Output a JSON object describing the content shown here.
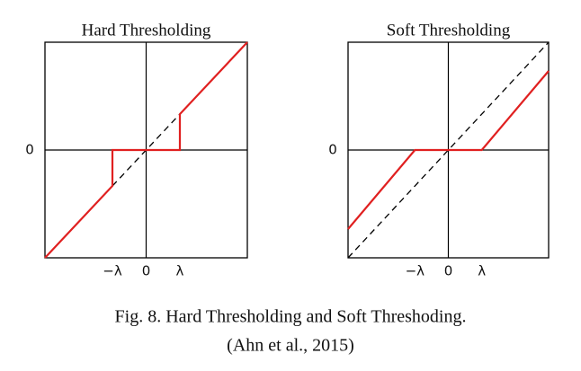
{
  "chart_data": [
    {
      "type": "line",
      "title": "Hard Thresholding",
      "xlim": [
        -3,
        3
      ],
      "ylim": [
        -3,
        3
      ],
      "xticks": [
        {
          "value": -1,
          "label": "−λ"
        },
        0,
        {
          "value": 1,
          "label": "λ"
        }
      ],
      "yticks": [
        0
      ],
      "series": [
        {
          "color": "#e02020",
          "dashed": false,
          "x": [
            -3,
            -1,
            -1,
            1,
            1,
            3
          ],
          "values": [
            -3,
            -1,
            0,
            0,
            1,
            3
          ]
        },
        {
          "color": "#000000",
          "dashed": true,
          "x": [
            -1,
            1
          ],
          "values": [
            -1,
            1
          ]
        }
      ]
    },
    {
      "type": "line",
      "title": "Soft Thresholding",
      "xlim": [
        -3,
        3
      ],
      "ylim": [
        -3,
        3
      ],
      "xticks": [
        {
          "value": -1,
          "label": "−λ"
        },
        0,
        {
          "value": 1,
          "label": "λ"
        }
      ],
      "yticks": [
        0
      ],
      "series": [
        {
          "color": "#e02020",
          "dashed": false,
          "x": [
            -3,
            -1,
            1,
            3
          ],
          "values": [
            -2.2,
            0,
            0,
            2.2
          ]
        },
        {
          "color": "#000000",
          "dashed": true,
          "x": [
            -3,
            3
          ],
          "values": [
            -3,
            3
          ]
        }
      ]
    }
  ],
  "caption": [
    "Fig. 8. Hard Thresholding and Soft Threshoding.",
    "(Ahn et al., 2015)"
  ]
}
